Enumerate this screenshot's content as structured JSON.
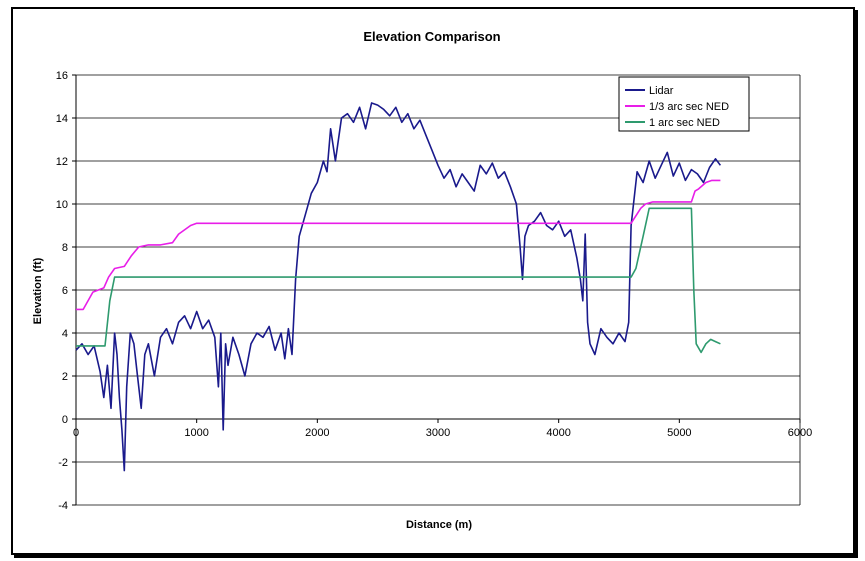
{
  "chart_data": {
    "type": "line",
    "title": "Elevation Comparison",
    "xlabel": "Distance (m)",
    "ylabel": "Elevation (ft)",
    "xlim": [
      0,
      6000
    ],
    "ylim": [
      -4,
      16
    ],
    "x_ticks": [
      0,
      1000,
      2000,
      3000,
      4000,
      5000,
      6000
    ],
    "y_ticks": [
      -4,
      -2,
      0,
      2,
      4,
      6,
      8,
      10,
      12,
      14,
      16
    ],
    "grid": "horizontal",
    "legend_position": "top-right",
    "series": [
      {
        "name": "Lidar",
        "color": "#1a1a8c",
        "x": [
          0,
          50,
          100,
          150,
          200,
          230,
          260,
          290,
          320,
          340,
          360,
          380,
          400,
          420,
          450,
          480,
          510,
          540,
          570,
          600,
          650,
          700,
          750,
          800,
          850,
          900,
          950,
          1000,
          1050,
          1100,
          1150,
          1180,
          1200,
          1220,
          1240,
          1260,
          1300,
          1350,
          1400,
          1450,
          1500,
          1550,
          1600,
          1650,
          1700,
          1730,
          1760,
          1790,
          1820,
          1850,
          1900,
          1950,
          2000,
          2050,
          2080,
          2110,
          2150,
          2200,
          2250,
          2300,
          2350,
          2400,
          2450,
          2500,
          2550,
          2600,
          2650,
          2700,
          2750,
          2800,
          2850,
          2900,
          2950,
          3000,
          3050,
          3100,
          3150,
          3200,
          3250,
          3300,
          3350,
          3400,
          3450,
          3500,
          3550,
          3600,
          3650,
          3680,
          3700,
          3720,
          3750,
          3800,
          3850,
          3900,
          3950,
          4000,
          4050,
          4100,
          4150,
          4180,
          4200,
          4220,
          4240,
          4260,
          4300,
          4350,
          4400,
          4450,
          4500,
          4550,
          4580,
          4600,
          4650,
          4700,
          4750,
          4800,
          4850,
          4900,
          4950,
          5000,
          5050,
          5100,
          5150,
          5200,
          5250,
          5300,
          5340
        ],
        "values": [
          3.2,
          3.5,
          3.0,
          3.4,
          2.2,
          1.0,
          2.5,
          0.5,
          4.0,
          3.0,
          1.0,
          -0.5,
          -2.4,
          1.5,
          4.0,
          3.5,
          2.0,
          0.5,
          3.0,
          3.5,
          2.0,
          3.8,
          4.2,
          3.5,
          4.5,
          4.8,
          4.2,
          5.0,
          4.2,
          4.6,
          3.8,
          1.5,
          4.0,
          -0.5,
          3.5,
          2.5,
          3.8,
          3.0,
          2.0,
          3.5,
          4.0,
          3.8,
          4.3,
          3.2,
          4.0,
          2.8,
          4.2,
          3.0,
          6.5,
          8.5,
          9.5,
          10.5,
          11.0,
          12.0,
          11.5,
          13.5,
          12.0,
          14.0,
          14.2,
          13.8,
          14.5,
          13.5,
          14.7,
          14.6,
          14.4,
          14.1,
          14.5,
          13.8,
          14.2,
          13.5,
          13.9,
          13.2,
          12.5,
          11.8,
          11.2,
          11.6,
          10.8,
          11.4,
          11.0,
          10.6,
          11.8,
          11.4,
          11.9,
          11.2,
          11.5,
          10.8,
          10.0,
          8.0,
          6.5,
          8.5,
          9.0,
          9.2,
          9.6,
          9.0,
          8.8,
          9.2,
          8.5,
          8.8,
          7.5,
          6.5,
          5.5,
          8.6,
          4.5,
          3.5,
          3.0,
          4.2,
          3.8,
          3.5,
          4.0,
          3.6,
          4.5,
          9.0,
          11.5,
          11.0,
          12.0,
          11.2,
          11.8,
          12.4,
          11.3,
          11.9,
          11.1,
          11.6,
          11.4,
          11.0,
          11.7,
          12.1,
          11.8
        ]
      },
      {
        "name": "1/3 arc sec NED",
        "color": "#e81ee8",
        "x": [
          0,
          60,
          140,
          230,
          270,
          320,
          400,
          460,
          520,
          600,
          700,
          800,
          850,
          950,
          1000,
          2000,
          3000,
          4000,
          4600,
          4680,
          4720,
          4780,
          5100,
          5130,
          5160,
          5220,
          5270,
          5340
        ],
        "values": [
          5.1,
          5.1,
          5.9,
          6.1,
          6.6,
          7.0,
          7.1,
          7.6,
          8.0,
          8.1,
          8.1,
          8.2,
          8.6,
          9.0,
          9.1,
          9.1,
          9.1,
          9.1,
          9.1,
          9.8,
          10.0,
          10.1,
          10.1,
          10.6,
          10.7,
          11.0,
          11.1,
          11.1
        ]
      },
      {
        "name": "1 arc sec NED",
        "color": "#2e9a6e",
        "x": [
          0,
          200,
          240,
          280,
          320,
          1000,
          2000,
          3000,
          4000,
          4600,
          4640,
          4700,
          4750,
          5100,
          5120,
          5140,
          5180,
          5220,
          5260,
          5300,
          5340
        ],
        "values": [
          3.4,
          3.4,
          3.4,
          5.5,
          6.6,
          6.6,
          6.6,
          6.6,
          6.6,
          6.6,
          7.0,
          8.5,
          9.8,
          9.8,
          6.0,
          3.5,
          3.1,
          3.5,
          3.7,
          3.6,
          3.5
        ]
      }
    ]
  }
}
